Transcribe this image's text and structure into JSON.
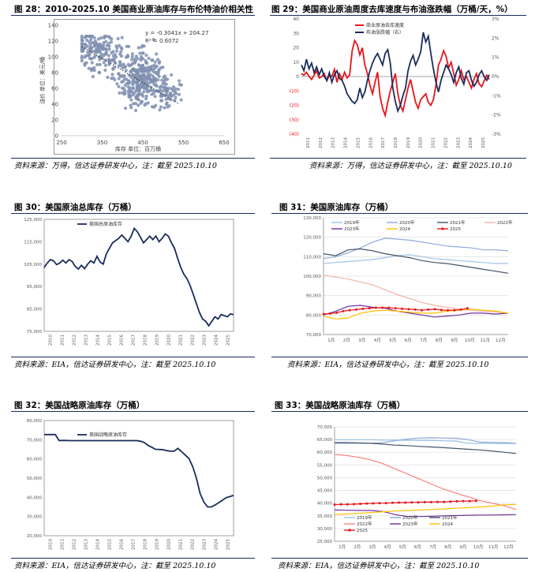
{
  "titles": {
    "p28": "图 28：2010-2025.10 美国商业原油库存与布伦特油价相关性",
    "p29": "图 29：美国商业原油周度去库速度与布油涨跌幅（万桶/天，%）",
    "p30": "图 30：美国原油总库存（万桶）",
    "p31": "图 31：美国原油库存（万桶）",
    "p32": "图 32：美国战略原油库存（万桶）",
    "p33": "图 33：美国战略原油库存（万桶）"
  },
  "sources": {
    "p28": "资料来源：万得，信达证券研发中心，注：截至 2025.10.10",
    "p29": "资料来源：万得，信达证券研发中心，注：截至 2025.10.10",
    "p30": "资料来源：EIA，信达证券研发中心，注：截至 2025.10.10",
    "p31": "资料来源：EIA，信达证券研发中心，注：截至 2025.10.10",
    "p32": "资料来源：EIA，信达证券研发中心，注：截至 2025.10.10",
    "p33": "资料来源：EIA，信达证券研发中心，注：截至 2025.10.10"
  },
  "colors": {
    "navy": "#1a2c5a",
    "scatter": "#7f8fb0",
    "red": "#e8141b",
    "darkblue": "#1f3a6e",
    "lightblue": "#9dc3e6",
    "grayblue": "#8ea9db",
    "darkgray": "#44546a",
    "pink": "#f4b3a5",
    "purple": "#7030a0",
    "gold": "#ffc000",
    "pinkred": "#ff7f7f"
  },
  "chart_data": [
    {
      "id": "p28",
      "type": "scatter",
      "xlabel": "库存 单位：百万桶",
      "ylabel": "油价 单位：美元/桶",
      "xlim": [
        250,
        650
      ],
      "ylim": [
        0,
        140
      ],
      "xticks": [
        "250",
        "350",
        "450",
        "550",
        "650"
      ],
      "yticks": [
        "0",
        "20",
        "40",
        "60",
        "80",
        "100",
        "120",
        "140"
      ],
      "equation": "y = -0.3041x + 204.27",
      "r2": "R² = 0.6072",
      "regression": {
        "slope": -0.3041,
        "intercept": 204.27,
        "x_from": 300,
        "x_to": 540
      },
      "clusters": [
        {
          "cx": 335,
          "cy": 107,
          "sx": 22,
          "sy": 11,
          "n": 140
        },
        {
          "cx": 390,
          "cy": 90,
          "sx": 16,
          "sy": 16,
          "n": 50
        },
        {
          "cx": 450,
          "cy": 77,
          "sx": 24,
          "sy": 16,
          "n": 200
        },
        {
          "cx": 500,
          "cy": 55,
          "sx": 22,
          "sy": 11,
          "n": 80
        },
        {
          "cx": 430,
          "cy": 60,
          "sx": 14,
          "sy": 14,
          "n": 60
        }
      ]
    },
    {
      "id": "p29",
      "type": "line",
      "legend": [
        "商业原油去库速度",
        "布油涨跌幅（右）"
      ],
      "x_ticks": [
        "2011",
        "2012",
        "2013",
        "2014",
        "2015",
        "2016",
        "2017",
        "2018",
        "2019",
        "2020",
        "2021",
        "2022",
        "2023",
        "2024",
        "2025"
      ],
      "ylim": [
        -40,
        40
      ],
      "yticks": [
        "(40)",
        "(30)",
        "(20)",
        "(10)",
        "0",
        "10",
        "20",
        "30",
        "40"
      ],
      "y2lim": [
        -3,
        3
      ],
      "y2ticks": [
        "-3%",
        "-2%",
        "-1%",
        "0%",
        "1%",
        "2%",
        "3%"
      ],
      "series": [
        {
          "name": "商业原油去库速度",
          "axis": "left",
          "color": "#e8141b",
          "values": [
            2,
            1,
            3,
            0,
            -2,
            1,
            4,
            -1,
            0,
            2,
            -3,
            1,
            0,
            5,
            -4,
            2,
            -2,
            3,
            -1,
            1,
            18,
            25,
            22,
            15,
            20,
            8,
            2,
            -6,
            -12,
            -4,
            3,
            -14,
            -22,
            -27,
            -18,
            -10,
            -4,
            2,
            -12,
            -20,
            -24,
            -16,
            -8,
            -2,
            -10,
            -18,
            -22,
            -16,
            -14,
            -12,
            -18,
            -20,
            -16,
            -6,
            8,
            12,
            18,
            14,
            6,
            10,
            2,
            -6,
            -2,
            4,
            -2,
            0,
            -4,
            -8,
            -2,
            2,
            -5,
            -7,
            -3,
            1,
            -2
          ]
        },
        {
          "name": "布油涨跌幅（右）",
          "axis": "right",
          "color": "#1a2c5a",
          "values": [
            0.6,
            0.3,
            0.9,
            0.4,
            0.7,
            0.2,
            0.5,
            0.1,
            0.4,
            0.0,
            -0.2,
            0.2,
            -0.3,
            0.1,
            0.3,
            -0.1,
            -0.2,
            -0.5,
            -0.9,
            -1.1,
            -1.3,
            -1.4,
            -1.2,
            -0.6,
            -1.1,
            -0.8,
            -0.2,
            0.3,
            0.7,
            1.0,
            1.2,
            0.9,
            0.6,
            1.2,
            1.4,
            0.7,
            -0.6,
            -1.3,
            -1.8,
            -1.5,
            -1.0,
            -0.6,
            0.3,
            0.8,
            1.1,
            0.6,
            0.9,
            1.3,
            2.3,
            1.8,
            2.1,
            1.2,
            0.4,
            -0.3,
            -0.8,
            -0.2,
            0.2,
            0.6,
            0.4,
            0.1,
            -0.3,
            0.2,
            0.5,
            -0.1,
            -0.4,
            0.2,
            0.3,
            -0.2,
            -0.5,
            -0.3,
            0.1,
            0.3,
            0.0,
            -0.2,
            0.1
          ]
        }
      ]
    },
    {
      "id": "p30",
      "type": "line",
      "legend": [
        "美国总原油库存"
      ],
      "x_ticks": [
        "2010",
        "2011",
        "2012",
        "2013",
        "2014",
        "2015",
        "2016",
        "2017",
        "2018",
        "2019",
        "2020",
        "2021",
        "2022",
        "2023",
        "2024",
        "2025"
      ],
      "ylim": [
        75000,
        125000
      ],
      "yticks": [
        "75,000",
        "85,000",
        "95,000",
        "105,000",
        "115,000",
        "125,000"
      ],
      "series": [
        {
          "name": "美国总原油库存",
          "color": "#1a2c5a",
          "values": [
            103500,
            105500,
            107000,
            106500,
            104800,
            105500,
            106800,
            105500,
            107000,
            106200,
            104000,
            102800,
            104500,
            103000,
            105000,
            106500,
            105500,
            108500,
            106000,
            105000,
            109500,
            112000,
            114500,
            115500,
            116500,
            118000,
            116500,
            115000,
            117500,
            121000,
            119500,
            117000,
            114500,
            116000,
            117500,
            116000,
            117500,
            115000,
            116500,
            118500,
            117500,
            114500,
            112000,
            107500,
            103500,
            100500,
            98500,
            95500,
            91500,
            87500,
            83500,
            80500,
            79500,
            77500,
            79500,
            81500,
            80500,
            82500,
            82000,
            81500,
            82800,
            82500
          ]
        }
      ]
    },
    {
      "id": "p31",
      "type": "line",
      "x_ticks": [
        "1月",
        "2月",
        "3月",
        "4月",
        "5月",
        "6月",
        "7月",
        "8月",
        "9月",
        "10月",
        "11月",
        "12月"
      ],
      "ylim": [
        70000,
        130000
      ],
      "yticks": [
        "70,000",
        "80,000",
        "90,000",
        "100,000",
        "110,000",
        "120,000",
        "130,000"
      ],
      "legend": [
        "2019年",
        "2020年",
        "2021年",
        "2022年",
        "2023年",
        "2024",
        "2025"
      ],
      "series": [
        {
          "name": "2019年",
          "color": "#9dc3e6",
          "values": [
            106500,
            107000,
            107500,
            108000,
            108500,
            109500,
            110500,
            111000,
            110000,
            109000,
            108500,
            108000,
            107500,
            107000,
            106500,
            106500
          ]
        },
        {
          "name": "2020年",
          "color": "#8ea9db",
          "values": [
            109000,
            110000,
            112000,
            114500,
            117500,
            119500,
            119000,
            118500,
            117500,
            116500,
            115500,
            115000,
            114500,
            113500,
            113500,
            113000
          ]
        },
        {
          "name": "2021年",
          "color": "#44546a",
          "values": [
            111500,
            110500,
            113500,
            114000,
            113000,
            111500,
            110500,
            109500,
            108000,
            107000,
            106500,
            105500,
            104500,
            103500,
            102500,
            101500
          ]
        },
        {
          "name": "2022年",
          "color": "#f4b3a5",
          "values": [
            100500,
            99500,
            98500,
            97000,
            95500,
            93000,
            90500,
            88500,
            86500,
            85000,
            84000,
            83000,
            82500,
            82000,
            81500,
            81000
          ]
        },
        {
          "name": "2023年",
          "color": "#7030a0",
          "values": [
            80000,
            82000,
            84500,
            85000,
            84000,
            83500,
            82000,
            81000,
            80000,
            79000,
            79500,
            80000,
            81000,
            81000,
            80500,
            81000
          ]
        },
        {
          "name": "2024",
          "color": "#ffc000",
          "values": [
            79500,
            78000,
            78500,
            81000,
            82000,
            82500,
            82000,
            81500,
            81000,
            81000,
            82000,
            82500,
            83000,
            82500,
            82000,
            81000
          ]
        },
        {
          "name": "2025",
          "color": "#e8141b",
          "marker": true,
          "values": [
            80500,
            80800,
            81200,
            82000,
            82500,
            82800,
            83200,
            83500,
            83800,
            83800,
            83800,
            83500,
            83200,
            83000,
            82800,
            82500,
            82800,
            83000,
            82600,
            82500,
            82500,
            82800,
            83500
          ]
        }
      ]
    },
    {
      "id": "p32",
      "type": "line",
      "legend": [
        "美国战略原油库存"
      ],
      "x_ticks": [
        "2010",
        "2011",
        "2012",
        "2013",
        "2014",
        "2015",
        "2016",
        "2017",
        "2018",
        "2019",
        "2020",
        "2021",
        "2022",
        "2023",
        "2024",
        "2025"
      ],
      "ylim": [
        20000,
        80000
      ],
      "yticks": [
        "20,000",
        "30,000",
        "40,000",
        "50,000",
        "60,000",
        "70,000",
        "80,000"
      ],
      "series": [
        {
          "name": "美国战略原油库存",
          "color": "#1a2c5a",
          "values": [
            72700,
            72700,
            72700,
            72700,
            69600,
            69600,
            69600,
            69500,
            69500,
            69500,
            69500,
            69500,
            69500,
            69500,
            69500,
            69500,
            69500,
            69500,
            69500,
            69500,
            69500,
            69500,
            69500,
            69500,
            69500,
            69500,
            69200,
            68500,
            67000,
            66000,
            65000,
            64900,
            64800,
            64300,
            64000,
            64000,
            65500,
            63800,
            62000,
            60200,
            56000,
            50000,
            42000,
            37500,
            35000,
            35000,
            36000,
            37200,
            38500,
            39800,
            40400,
            41000
          ]
        }
      ]
    },
    {
      "id": "p33",
      "type": "line",
      "x_ticks": [
        "1月",
        "2月",
        "3月",
        "4月",
        "5月",
        "6月",
        "7月",
        "8月",
        "9月",
        "10月",
        "11月",
        "12月"
      ],
      "ylim": [
        25000,
        70000
      ],
      "yticks": [
        "25,000",
        "30,000",
        "35,000",
        "40,000",
        "45,000",
        "50,000",
        "55,000",
        "60,000",
        "65,000",
        "70,000"
      ],
      "legend": [
        "2019年",
        "2020年",
        "2021年",
        "2022年",
        "2023年",
        "2024",
        "2025"
      ],
      "series": [
        {
          "name": "2019年",
          "color": "#9dc3e6",
          "values": [
            64900,
            64900,
            64900,
            64900,
            64800,
            64800,
            64700,
            64700,
            64600,
            64500,
            64400,
            63500,
            63500,
            63500,
            63400,
            63500
          ]
        },
        {
          "name": "2020年",
          "color": "#8ea9db",
          "values": [
            63500,
            63500,
            63500,
            63500,
            63800,
            64500,
            65200,
            65600,
            65700,
            65600,
            65500,
            65000,
            64000,
            63900,
            63800,
            63500
          ]
        },
        {
          "name": "2021年",
          "color": "#44546a",
          "values": [
            63800,
            63800,
            63700,
            63500,
            63200,
            62800,
            62600,
            62300,
            62100,
            61800,
            61500,
            61200,
            60900,
            60500,
            60000,
            59500
          ]
        },
        {
          "name": "2022年",
          "color": "#ff7f7f",
          "values": [
            59200,
            58700,
            58000,
            57000,
            55500,
            53500,
            51500,
            49500,
            47500,
            45500,
            44000,
            42500,
            41000,
            40000,
            39000,
            37500
          ]
        },
        {
          "name": "2023年",
          "color": "#7030a0",
          "values": [
            37300,
            37200,
            37100,
            37100,
            36700,
            35500,
            34700,
            34700,
            34800,
            35000,
            35100,
            35200,
            35300,
            35300,
            35400,
            35500
          ]
        },
        {
          "name": "2024",
          "color": "#ffc000",
          "values": [
            35500,
            35700,
            36000,
            36300,
            36600,
            36900,
            37100,
            37300,
            37500,
            37700,
            38000,
            38200,
            38500,
            38800,
            39300,
            39500
          ]
        },
        {
          "name": "2025",
          "color": "#e8141b",
          "marker": true,
          "values": [
            39400,
            39500,
            39500,
            39600,
            39700,
            39800,
            39900,
            40000,
            40000,
            40100,
            40200,
            40200,
            40300,
            40300,
            40400,
            40400,
            40500,
            40500,
            40600,
            40700,
            40800,
            40800,
            40900
          ]
        }
      ]
    }
  ]
}
